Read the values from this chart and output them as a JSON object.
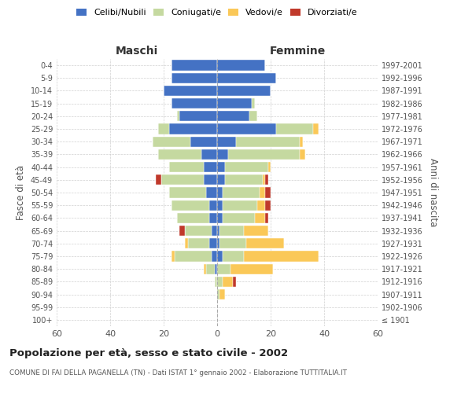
{
  "age_groups": [
    "100+",
    "95-99",
    "90-94",
    "85-89",
    "80-84",
    "75-79",
    "70-74",
    "65-69",
    "60-64",
    "55-59",
    "50-54",
    "45-49",
    "40-44",
    "35-39",
    "30-34",
    "25-29",
    "20-24",
    "15-19",
    "10-14",
    "5-9",
    "0-4"
  ],
  "birth_years": [
    "≤ 1901",
    "1902-1906",
    "1907-1911",
    "1912-1916",
    "1917-1921",
    "1922-1926",
    "1927-1931",
    "1932-1936",
    "1937-1941",
    "1942-1946",
    "1947-1951",
    "1952-1956",
    "1957-1961",
    "1962-1966",
    "1967-1971",
    "1972-1976",
    "1977-1981",
    "1982-1986",
    "1987-1991",
    "1992-1996",
    "1997-2001"
  ],
  "males": {
    "celibi": [
      0,
      0,
      0,
      0,
      1,
      2,
      3,
      2,
      3,
      3,
      4,
      5,
      5,
      6,
      10,
      18,
      14,
      17,
      20,
      17,
      17
    ],
    "coniugati": [
      0,
      0,
      0,
      1,
      3,
      14,
      8,
      10,
      12,
      14,
      14,
      16,
      13,
      16,
      14,
      4,
      1,
      0,
      0,
      0,
      0
    ],
    "vedovi": [
      0,
      0,
      0,
      0,
      1,
      1,
      1,
      0,
      0,
      0,
      0,
      0,
      0,
      0,
      0,
      0,
      0,
      0,
      0,
      0,
      0
    ],
    "divorziati": [
      0,
      0,
      0,
      0,
      0,
      0,
      0,
      2,
      0,
      0,
      0,
      2,
      0,
      0,
      0,
      0,
      0,
      0,
      0,
      0,
      0
    ]
  },
  "females": {
    "nubili": [
      0,
      0,
      0,
      0,
      0,
      2,
      1,
      1,
      2,
      2,
      2,
      3,
      3,
      4,
      7,
      22,
      12,
      13,
      20,
      22,
      18
    ],
    "coniugate": [
      0,
      0,
      1,
      2,
      5,
      8,
      10,
      9,
      12,
      13,
      14,
      14,
      16,
      27,
      24,
      14,
      3,
      1,
      0,
      0,
      0
    ],
    "vedove": [
      0,
      0,
      2,
      4,
      16,
      28,
      14,
      9,
      4,
      3,
      2,
      1,
      1,
      2,
      1,
      2,
      0,
      0,
      0,
      0,
      0
    ],
    "divorziate": [
      0,
      0,
      0,
      1,
      0,
      0,
      0,
      0,
      1,
      2,
      2,
      1,
      0,
      0,
      0,
      0,
      0,
      0,
      0,
      0,
      0
    ]
  },
  "color_celibi": "#4472C4",
  "color_coniugati": "#C5D9A0",
  "color_vedovi": "#FAC858",
  "color_divorziati": "#C0392B",
  "xlim": 60,
  "title": "Popolazione per età, sesso e stato civile - 2002",
  "subtitle": "COMUNE DI FAI DELLA PAGANELLA (TN) - Dati ISTAT 1° gennaio 2002 - Elaborazione TUTTITALIA.IT",
  "xlabel_left": "Maschi",
  "xlabel_right": "Femmine",
  "ylabel_left": "Fasce di età",
  "ylabel_right": "Anni di nascita",
  "background_color": "#ffffff",
  "grid_color": "#cccccc"
}
